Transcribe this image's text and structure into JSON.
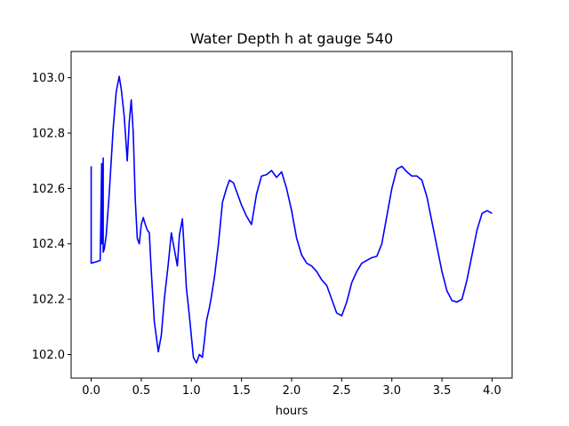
{
  "chart_data": {
    "type": "line",
    "title": "Water Depth h at gauge 540",
    "xlabel": "hours",
    "ylabel": "",
    "xlim": [
      -0.2,
      4.2
    ],
    "ylim": [
      101.915,
      103.095
    ],
    "xticks": [
      0.0,
      0.5,
      1.0,
      1.5,
      2.0,
      2.5,
      3.0,
      3.5,
      4.0
    ],
    "xtick_labels": [
      "0.0",
      "0.5",
      "1.0",
      "1.5",
      "2.0",
      "2.5",
      "3.0",
      "3.5",
      "4.0"
    ],
    "yticks": [
      102.0,
      102.2,
      102.4,
      102.6,
      102.8,
      103.0
    ],
    "ytick_labels": [
      "102.0",
      "102.2",
      "102.4",
      "102.6",
      "102.8",
      "103.0"
    ],
    "grid": false,
    "series": [
      {
        "color": "#0000ff",
        "x": [
          0.0,
          0.0,
          0.0,
          0.05,
          0.09,
          0.105,
          0.105,
          0.12,
          0.12,
          0.13,
          0.15,
          0.18,
          0.22,
          0.25,
          0.28,
          0.3,
          0.33,
          0.36,
          0.38,
          0.4,
          0.42,
          0.44,
          0.46,
          0.48,
          0.5,
          0.52,
          0.54,
          0.56,
          0.58,
          0.6,
          0.63,
          0.67,
          0.7,
          0.73,
          0.77,
          0.8,
          0.83,
          0.86,
          0.88,
          0.91,
          0.93,
          0.95,
          0.98,
          1.02,
          1.05,
          1.08,
          1.11,
          1.13,
          1.15,
          1.18,
          1.2,
          1.23,
          1.27,
          1.31,
          1.35,
          1.38,
          1.42,
          1.46,
          1.5,
          1.55,
          1.6,
          1.65,
          1.7,
          1.75,
          1.8,
          1.85,
          1.9,
          1.95,
          2.0,
          2.05,
          2.1,
          2.15,
          2.2,
          2.25,
          2.3,
          2.35,
          2.4,
          2.45,
          2.5,
          2.55,
          2.6,
          2.65,
          2.7,
          2.75,
          2.8,
          2.85,
          2.9,
          2.95,
          3.0,
          3.05,
          3.1,
          3.15,
          3.2,
          3.25,
          3.3,
          3.35,
          3.4,
          3.45,
          3.5,
          3.55,
          3.6,
          3.65,
          3.7,
          3.75,
          3.8,
          3.85,
          3.9,
          3.95,
          4.0
        ],
        "y": [
          102.68,
          102.56,
          102.33,
          102.335,
          102.34,
          102.69,
          102.4,
          102.71,
          102.37,
          102.38,
          102.43,
          102.58,
          102.82,
          102.95,
          103.005,
          102.96,
          102.86,
          102.7,
          102.84,
          102.92,
          102.8,
          102.56,
          102.42,
          102.4,
          102.47,
          102.495,
          102.47,
          102.45,
          102.44,
          102.3,
          102.12,
          102.01,
          102.07,
          102.2,
          102.33,
          102.44,
          102.38,
          102.32,
          102.43,
          102.49,
          102.37,
          102.24,
          102.14,
          101.99,
          101.97,
          102.0,
          101.99,
          102.05,
          102.12,
          102.17,
          102.21,
          102.28,
          102.4,
          102.55,
          102.6,
          102.63,
          102.62,
          102.58,
          102.54,
          102.5,
          102.47,
          102.58,
          102.645,
          102.65,
          102.665,
          102.64,
          102.66,
          102.6,
          102.52,
          102.42,
          102.36,
          102.33,
          102.32,
          102.3,
          102.27,
          102.25,
          102.2,
          102.15,
          102.14,
          102.19,
          102.26,
          102.3,
          102.33,
          102.34,
          102.35,
          102.355,
          102.4,
          102.5,
          102.6,
          102.67,
          102.68,
          102.66,
          102.645,
          102.645,
          102.63,
          102.57,
          102.48,
          102.39,
          102.3,
          102.23,
          102.195,
          102.19,
          102.2,
          102.27,
          102.36,
          102.45,
          102.51,
          102.52,
          102.51
        ]
      }
    ]
  }
}
